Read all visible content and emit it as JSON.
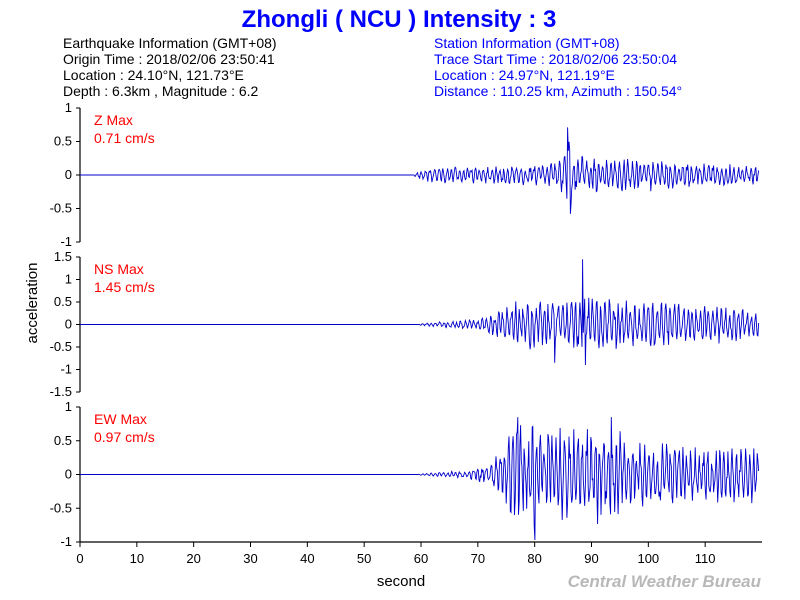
{
  "header": {
    "title": "Zhongli ( NCU ) Intensity : 3"
  },
  "earthquake_info": [
    "Earthquake Information (GMT+08)",
    "Origin Time : 2018/02/06 23:50:41",
    "Location : 24.10°N, 121.73°E",
    "Depth : 6.3km , Magnitude : 6.2"
  ],
  "station_info": [
    "Station Information (GMT+08)",
    "Trace Start Time : 2018/02/06 23:50:04",
    "Location : 24.97°N, 121.19°E",
    "Distance : 110.25 km, Azimuth : 150.54°"
  ],
  "credit": "Central Weather Bureau",
  "colors": {
    "trace": "#0000cc",
    "max_label": "#ff0000",
    "title": "#0000ff"
  },
  "chart_data": {
    "type": "line",
    "xlabel": "second",
    "ylabel": "acceleration",
    "xlim": [
      0,
      120
    ],
    "x_ticks": [
      "0",
      "10",
      "20",
      "30",
      "40",
      "50",
      "60",
      "70",
      "80",
      "90",
      "100",
      "110"
    ],
    "grid": false,
    "series": [
      {
        "name": "Z",
        "label_line1": "Z Max",
        "label_line2": "0.71 cm/s",
        "max": 0.71,
        "ylim": [
          -1,
          1
        ],
        "y_ticks": [
          "1",
          "0.5",
          "0",
          "-0.5",
          "-1"
        ],
        "y_tick_values": [
          1,
          0.5,
          0,
          -0.5,
          -1
        ],
        "quiet_until": 58.5,
        "envelope": [
          [
            58.5,
            0.0
          ],
          [
            60,
            0.08
          ],
          [
            62,
            0.12
          ],
          [
            70,
            0.13
          ],
          [
            80,
            0.16
          ],
          [
            84,
            0.22
          ],
          [
            86,
            0.65
          ],
          [
            87,
            0.3
          ],
          [
            90,
            0.28
          ],
          [
            100,
            0.25
          ],
          [
            110,
            0.18
          ],
          [
            119.5,
            0.15
          ]
        ],
        "peaks": [
          {
            "x": 85.8,
            "y": 0.71
          },
          {
            "x": 86.3,
            "y": -0.58
          }
        ]
      },
      {
        "name": "NS",
        "label_line1": "NS Max",
        "label_line2": "1.45 cm/s",
        "max": 1.45,
        "ylim": [
          -1.5,
          1.5
        ],
        "y_ticks": [
          "1.5",
          "1",
          "0.5",
          "0",
          "-0.5",
          "-1",
          "-1.5"
        ],
        "y_tick_values": [
          1.5,
          1,
          0.5,
          0,
          -0.5,
          -1,
          -1.5
        ],
        "quiet_until": 59.5,
        "envelope": [
          [
            59.5,
            0.0
          ],
          [
            60,
            0.03
          ],
          [
            65,
            0.08
          ],
          [
            70,
            0.12
          ],
          [
            73,
            0.3
          ],
          [
            76,
            0.5
          ],
          [
            80,
            0.6
          ],
          [
            85,
            0.55
          ],
          [
            88,
            0.7
          ],
          [
            90,
            0.6
          ],
          [
            100,
            0.55
          ],
          [
            110,
            0.45
          ],
          [
            119.5,
            0.35
          ]
        ],
        "peaks": [
          {
            "x": 88.5,
            "y": 1.45
          },
          {
            "x": 88.9,
            "y": -0.9
          },
          {
            "x": 83.5,
            "y": -0.85
          }
        ]
      },
      {
        "name": "EW",
        "label_line1": "EW Max",
        "label_line2": "0.97 cm/s",
        "max": 0.97,
        "ylim": [
          -1,
          1
        ],
        "y_ticks": [
          "1",
          "0.5",
          "0",
          "-0.5",
          "-1"
        ],
        "y_tick_values": [
          1,
          0.5,
          0,
          -0.5,
          -1
        ],
        "quiet_until": 59.5,
        "envelope": [
          [
            59.5,
            0.0
          ],
          [
            60,
            0.02
          ],
          [
            68,
            0.06
          ],
          [
            72,
            0.15
          ],
          [
            74,
            0.35
          ],
          [
            76,
            0.75
          ],
          [
            80,
            0.85
          ],
          [
            85,
            0.7
          ],
          [
            90,
            0.8
          ],
          [
            95,
            0.65
          ],
          [
            100,
            0.5
          ],
          [
            110,
            0.42
          ],
          [
            119.5,
            0.45
          ]
        ],
        "peaks": [
          {
            "x": 80,
            "y": -0.97
          },
          {
            "x": 93.5,
            "y": 0.85
          },
          {
            "x": 77,
            "y": 0.85
          }
        ]
      }
    ]
  }
}
